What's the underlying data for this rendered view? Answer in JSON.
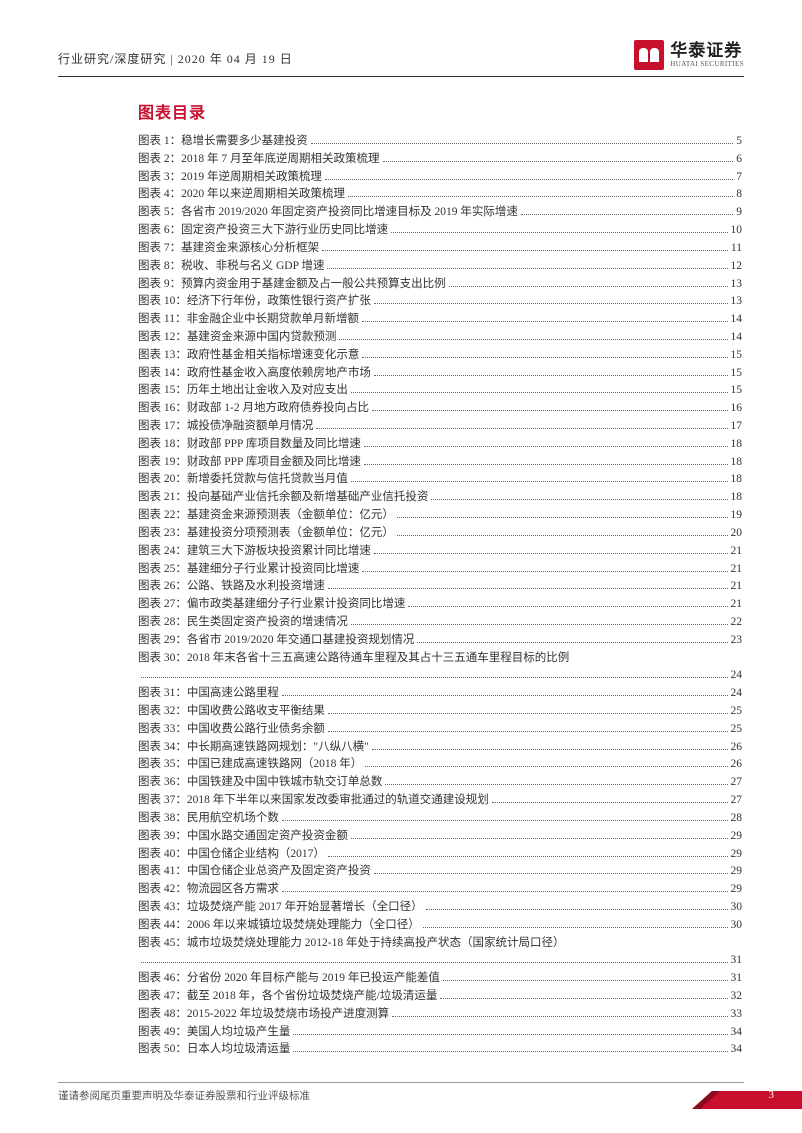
{
  "header": {
    "breadcrumb": "行业研究/深度研究  | 2020 年 04 月 19 日",
    "logo_cn": "华泰证券",
    "logo_en": "HUATAI SECURITIES"
  },
  "section_title": "图表目录",
  "toc": [
    {
      "n": "图表 1：",
      "t": "稳增长需要多少基建投资",
      "p": "5"
    },
    {
      "n": "图表 2：",
      "t": "2018 年 7 月至年底逆周期相关政策梳理",
      "p": "6"
    },
    {
      "n": "图表 3：",
      "t": "2019 年逆周期相关政策梳理",
      "p": "7"
    },
    {
      "n": "图表 4：",
      "t": "2020 年以来逆周期相关政策梳理",
      "p": "8"
    },
    {
      "n": "图表 5：",
      "t": "各省市 2019/2020 年固定资产投资同比增速目标及 2019 年实际增速",
      "p": "9"
    },
    {
      "n": "图表 6：",
      "t": "固定资产投资三大下游行业历史同比增速",
      "p": "10"
    },
    {
      "n": "图表 7：",
      "t": "基建资金来源核心分析框架",
      "p": "11"
    },
    {
      "n": "图表 8：",
      "t": "税收、非税与名义 GDP 增速",
      "p": "12"
    },
    {
      "n": "图表 9：",
      "t": "预算内资金用于基建金额及占一般公共预算支出比例",
      "p": "13"
    },
    {
      "n": "图表 10：",
      "t": "经济下行年份，政策性银行资产扩张",
      "p": "13"
    },
    {
      "n": "图表 11：",
      "t": "非金融企业中长期贷款单月新增额",
      "p": "14"
    },
    {
      "n": "图表 12：",
      "t": "基建资金来源中国内贷款预测",
      "p": "14"
    },
    {
      "n": "图表 13：",
      "t": "政府性基金相关指标增速变化示意",
      "p": "15"
    },
    {
      "n": "图表 14：",
      "t": "政府性基金收入高度依赖房地产市场",
      "p": "15"
    },
    {
      "n": "图表 15：",
      "t": "历年土地出让金收入及对应支出",
      "p": "15"
    },
    {
      "n": "图表 16：",
      "t": "财政部 1-2 月地方政府债券投向占比",
      "p": "16"
    },
    {
      "n": "图表 17：",
      "t": "城投债净融资额单月情况",
      "p": "17"
    },
    {
      "n": "图表 18：",
      "t": "财政部 PPP 库项目数量及同比增速",
      "p": "18"
    },
    {
      "n": "图表 19：",
      "t": "财政部 PPP 库项目金额及同比增速",
      "p": "18"
    },
    {
      "n": "图表 20：",
      "t": "新增委托贷款与信托贷款当月值",
      "p": "18"
    },
    {
      "n": "图表 21：",
      "t": "投向基础产业信托余额及新增基础产业信托投资",
      "p": "18"
    },
    {
      "n": "图表 22：",
      "t": "基建资金来源预测表（金额单位：亿元）",
      "p": "19"
    },
    {
      "n": "图表 23：",
      "t": "基建投资分项预测表（金额单位：亿元）",
      "p": "20"
    },
    {
      "n": "图表 24：",
      "t": "建筑三大下游板块投资累计同比增速",
      "p": "21"
    },
    {
      "n": "图表 25：",
      "t": "基建细分子行业累计投资同比增速",
      "p": "21"
    },
    {
      "n": "图表 26：",
      "t": "公路、铁路及水利投资增速",
      "p": "21"
    },
    {
      "n": "图表 27：",
      "t": "偏市政类基建细分子行业累计投资同比增速",
      "p": "21"
    },
    {
      "n": "图表 28：",
      "t": "民生类固定资产投资的增速情况",
      "p": "22"
    },
    {
      "n": "图表 29：",
      "t": "各省市 2019/2020 年交通口基建投资规划情况",
      "p": "23"
    },
    {
      "n": "图表 30：",
      "t": "2018 年末各省十三五高速公路待通车里程及其占十三五通车里程目标的比例",
      "p": "",
      "nolead": true
    },
    {
      "n": "",
      "t": "",
      "p": "24"
    },
    {
      "n": "图表 31：",
      "t": "中国高速公路里程",
      "p": "24"
    },
    {
      "n": "图表 32：",
      "t": "中国收费公路收支平衡结果",
      "p": "25"
    },
    {
      "n": "图表 33：",
      "t": "中国收费公路行业债务余额",
      "p": "25"
    },
    {
      "n": "图表 34：",
      "t": "中长期高速铁路网规划：\"八纵八横\"",
      "p": "26"
    },
    {
      "n": "图表 35：",
      "t": "中国已建成高速铁路网（2018 年）",
      "p": "26"
    },
    {
      "n": "图表 36：",
      "t": "中国铁建及中国中铁城市轨交订单总数",
      "p": "27"
    },
    {
      "n": "图表 37：",
      "t": "2018 年下半年以来国家发改委审批通过的轨道交通建设规划",
      "p": "27"
    },
    {
      "n": "图表 38：",
      "t": "民用航空机场个数",
      "p": "28"
    },
    {
      "n": "图表 39：",
      "t": "中国水路交通固定资产投资金额",
      "p": "29"
    },
    {
      "n": "图表 40：",
      "t": "中国仓储企业结构（2017）",
      "p": "29"
    },
    {
      "n": "图表 41：",
      "t": "中国仓储企业总资产及固定资产投资",
      "p": "29"
    },
    {
      "n": "图表 42：",
      "t": "物流园区各方需求",
      "p": "29"
    },
    {
      "n": "图表 43：",
      "t": "垃圾焚烧产能 2017 年开始显著增长（全口径）",
      "p": "30"
    },
    {
      "n": "图表 44：",
      "t": "2006 年以来城镇垃圾焚烧处理能力（全口径）",
      "p": "30"
    },
    {
      "n": "图表 45：",
      "t": "城市垃圾焚烧处理能力 2012-18 年处于持续高投产状态（国家统计局口径）",
      "p": "",
      "nolead": true
    },
    {
      "n": "",
      "t": "",
      "p": "31"
    },
    {
      "n": "图表 46：",
      "t": "分省份 2020 年目标产能与 2019 年已投运产能差值",
      "p": "31"
    },
    {
      "n": "图表 47：",
      "t": "截至 2018 年，各个省份垃圾焚烧产能/垃圾清运量",
      "p": "32"
    },
    {
      "n": "图表 48：",
      "t": "2015-2022 年垃圾焚烧市场投产进度测算",
      "p": "33"
    },
    {
      "n": "图表 49：",
      "t": "美国人均垃圾产生量",
      "p": "34"
    },
    {
      "n": "图表 50：",
      "t": "日本人均垃圾清运量",
      "p": "34"
    }
  ],
  "footer": {
    "disclaimer": "谨请参阅尾页重要声明及华泰证券股票和行业评级标准",
    "page": "3"
  },
  "colors": {
    "brand": "#c8102e",
    "text": "#333333"
  }
}
